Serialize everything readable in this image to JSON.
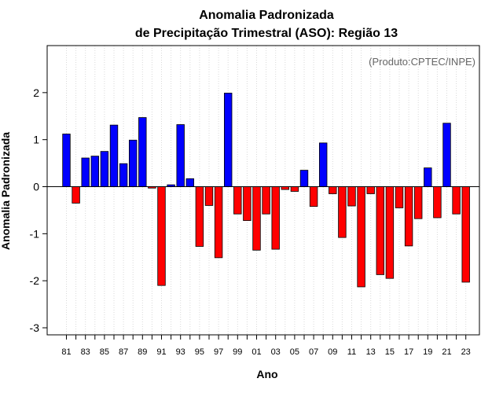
{
  "chart_data": {
    "type": "bar",
    "title": "Anomalia Padronizada",
    "subtitle": "de Precipitação Trimestral (ASO): Região 13",
    "xlabel": "Ano",
    "ylabel": "Anomalia Padronizada",
    "credit": "(Produto:CPTEC/INPE)",
    "ylim": [
      -3.15,
      3.0
    ],
    "yticks": [
      -3,
      -2,
      -1,
      0,
      1,
      2
    ],
    "ytick_labels": [
      "-3",
      "-2",
      "-1",
      "0",
      "1",
      "2"
    ],
    "grid": "vertical dotted",
    "categories": [
      "81",
      "82",
      "83",
      "84",
      "85",
      "86",
      "87",
      "88",
      "89",
      "90",
      "91",
      "92",
      "93",
      "94",
      "95",
      "96",
      "97",
      "98",
      "99",
      "00",
      "01",
      "02",
      "03",
      "04",
      "05",
      "06",
      "07",
      "08",
      "09",
      "10",
      "11",
      "12",
      "13",
      "14",
      "15",
      "16",
      "17",
      "18",
      "19",
      "20",
      "21",
      "22",
      "23"
    ],
    "values": [
      1.12,
      -0.35,
      0.61,
      0.65,
      0.75,
      1.31,
      0.49,
      0.99,
      1.47,
      -0.03,
      -2.1,
      0.04,
      1.32,
      0.17,
      -1.27,
      -0.4,
      -1.51,
      1.99,
      -0.58,
      -0.72,
      -1.35,
      -0.58,
      -1.33,
      -0.06,
      -0.1,
      0.35,
      -0.42,
      0.93,
      -0.15,
      -1.08,
      -0.41,
      -2.13,
      -0.15,
      -1.87,
      -1.95,
      -0.45,
      -1.26,
      -0.68,
      0.4,
      -0.66,
      1.35,
      -0.58,
      -2.03
    ],
    "xtick_labels": [
      "81",
      "83",
      "85",
      "87",
      "89",
      "91",
      "93",
      "95",
      "97",
      "99",
      "01",
      "03",
      "05",
      "07",
      "09",
      "11",
      "13",
      "15",
      "17",
      "19",
      "21",
      "23"
    ],
    "colors": {
      "positive": "#0000ff",
      "negative": "#ff0000",
      "outline": "#000000",
      "grid": "#d9d9d9"
    }
  }
}
